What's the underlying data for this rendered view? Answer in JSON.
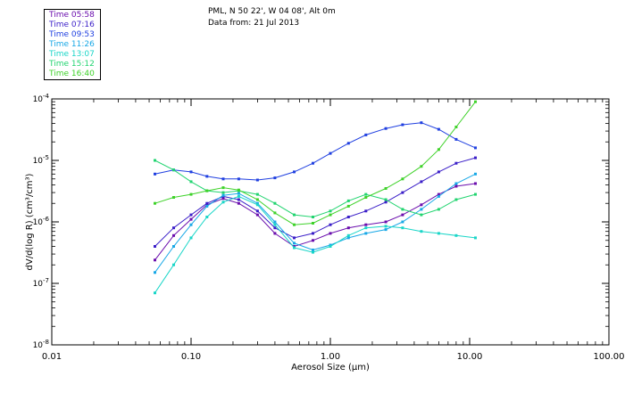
{
  "header": {
    "line1": "PML, N 50 22', W 04 08', Alt 0m",
    "line2": "Data from: 21 Jul 2013"
  },
  "legend": [
    {
      "label": "Time 05:58",
      "color": "#6a0dad"
    },
    {
      "label": "Time 07:16",
      "color": "#3a1ec8"
    },
    {
      "label": "Time 09:53",
      "color": "#1f3fe0"
    },
    {
      "label": "Time 11:26",
      "color": "#18a8e6"
    },
    {
      "label": "Time 13:07",
      "color": "#1ad6c8"
    },
    {
      "label": "Time 15:12",
      "color": "#22d470"
    },
    {
      "label": "Time 16:40",
      "color": "#3fd22a"
    }
  ],
  "chart_data": {
    "type": "line",
    "xscale": "log",
    "yscale": "log",
    "xlim": [
      0.01,
      100.0
    ],
    "ylim": [
      1e-08,
      0.0001
    ],
    "xlabel": "Aerosol Size (μm)",
    "ylabel": "dV/d(log R) (cm³/cm³)",
    "x_ticks": [
      {
        "value": 0.01,
        "label": "0.01"
      },
      {
        "value": 0.1,
        "label": "0.10"
      },
      {
        "value": 1.0,
        "label": "1.00"
      },
      {
        "value": 10.0,
        "label": "10.00"
      },
      {
        "value": 100.0,
        "label": "100.00"
      }
    ],
    "y_ticks": [
      {
        "value": 1e-08,
        "base": "10",
        "exp": "-8"
      },
      {
        "value": 1e-07,
        "base": "10",
        "exp": "-7"
      },
      {
        "value": 1e-06,
        "base": "10",
        "exp": "-6"
      },
      {
        "value": 1e-05,
        "base": "10",
        "exp": "-5"
      },
      {
        "value": 0.0001,
        "base": "10",
        "exp": "-4"
      }
    ],
    "x": [
      0.055,
      0.075,
      0.1,
      0.13,
      0.17,
      0.22,
      0.3,
      0.4,
      0.55,
      0.75,
      1.0,
      1.35,
      1.8,
      2.5,
      3.3,
      4.5,
      6.0,
      8.0,
      11.0
    ],
    "series": [
      {
        "name": "Time 05:58",
        "color": "#6a0dad",
        "values": [
          2.4e-07,
          6e-07,
          1.1e-06,
          1.9e-06,
          2.4e-06,
          2e-06,
          1.3e-06,
          6.5e-07,
          4e-07,
          5e-07,
          6.5e-07,
          8e-07,
          9e-07,
          1e-06,
          1.3e-06,
          1.9e-06,
          2.8e-06,
          3.8e-06,
          4.2e-06
        ]
      },
      {
        "name": "Time 07:16",
        "color": "#3a1ec8",
        "values": [
          4e-07,
          8e-07,
          1.3e-06,
          2e-06,
          2.6e-06,
          2.3e-06,
          1.5e-06,
          8e-07,
          5.5e-07,
          6.5e-07,
          9e-07,
          1.2e-06,
          1.5e-06,
          2.1e-06,
          3e-06,
          4.5e-06,
          6.5e-06,
          9e-06,
          1.1e-05
        ]
      },
      {
        "name": "Time 09:53",
        "color": "#1f3fe0",
        "values": [
          6e-06,
          7e-06,
          6.5e-06,
          5.5e-06,
          5e-06,
          5e-06,
          4.8e-06,
          5.2e-06,
          6.5e-06,
          9e-06,
          1.3e-05,
          1.9e-05,
          2.6e-05,
          3.3e-05,
          3.8e-05,
          4.1e-05,
          3.2e-05,
          2.2e-05,
          1.6e-05
        ]
      },
      {
        "name": "Time 11:26",
        "color": "#18a8e6",
        "values": [
          1.5e-07,
          4e-07,
          9e-07,
          1.8e-06,
          2.7e-06,
          2.9e-06,
          2e-06,
          1e-06,
          4.5e-07,
          3.5e-07,
          4.2e-07,
          5.5e-07,
          6.5e-07,
          7.5e-07,
          1e-06,
          1.6e-06,
          2.6e-06,
          4.2e-06,
          6e-06
        ]
      },
      {
        "name": "Time 13:07",
        "color": "#1ad6c8",
        "values": [
          7e-08,
          2e-07,
          5.5e-07,
          1.2e-06,
          2.1e-06,
          2.6e-06,
          1.9e-06,
          9e-07,
          3.8e-07,
          3.2e-07,
          4e-07,
          6e-07,
          8e-07,
          8.5e-07,
          8e-07,
          7e-07,
          6.5e-07,
          6e-07,
          5.5e-07
        ]
      },
      {
        "name": "Time 15:12",
        "color": "#22d470",
        "values": [
          1e-05,
          7e-06,
          4.5e-06,
          3.2e-06,
          3e-06,
          3.2e-06,
          2.8e-06,
          2e-06,
          1.3e-06,
          1.2e-06,
          1.5e-06,
          2.2e-06,
          2.8e-06,
          2.3e-06,
          1.6e-06,
          1.3e-06,
          1.6e-06,
          2.3e-06,
          2.8e-06
        ]
      },
      {
        "name": "Time 16:40",
        "color": "#3fd22a",
        "values": [
          2e-06,
          2.5e-06,
          2.8e-06,
          3.2e-06,
          3.6e-06,
          3.3e-06,
          2.3e-06,
          1.4e-06,
          9e-07,
          9.5e-07,
          1.3e-06,
          1.8e-06,
          2.5e-06,
          3.5e-06,
          5e-06,
          8e-06,
          1.5e-05,
          3.5e-05,
          9e-05
        ]
      }
    ]
  }
}
